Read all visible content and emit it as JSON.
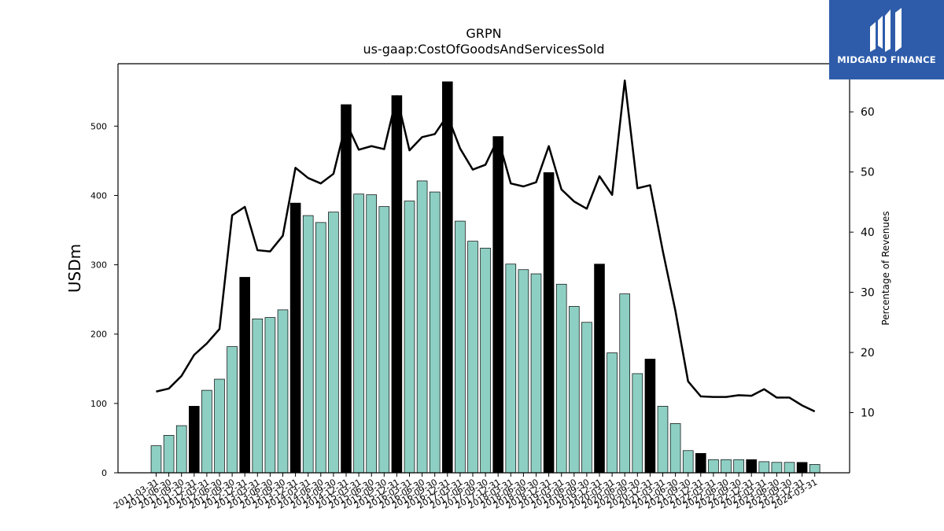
{
  "brand": {
    "name": "MIDGARD FINANCE",
    "color": "#2e5caa",
    "icon": "midgard-logo-icon"
  },
  "chart_data": {
    "type": "bar",
    "title": "GRPN",
    "subtitle": "us-gaap:CostOfGoodsAndServicesSold",
    "ylabel": "USDm",
    "ylabel_right": "Percentage of Revenues",
    "ylim": [
      0,
      590
    ],
    "ylim_right": [
      0,
      68
    ],
    "yticks": [
      0,
      100,
      200,
      300,
      400,
      500
    ],
    "yticks_right": [
      10,
      20,
      30,
      40,
      50,
      60
    ],
    "colors": {
      "quarter_bar": "#8ecfc3",
      "year_end_bar": "#000000",
      "line": "#000000"
    },
    "x": [
      "2011-03-31",
      "2011-06-30",
      "2011-09-30",
      "2011-12-31",
      "2012-03-31",
      "2012-06-30",
      "2012-09-30",
      "2012-12-31",
      "2013-03-31",
      "2013-06-30",
      "2013-09-30",
      "2013-12-31",
      "2014-03-31",
      "2014-06-30",
      "2014-09-30",
      "2014-12-31",
      "2015-03-31",
      "2015-06-30",
      "2015-09-30",
      "2015-12-31",
      "2016-03-31",
      "2016-06-30",
      "2016-09-30",
      "2016-12-31",
      "2017-03-31",
      "2017-06-30",
      "2017-09-30",
      "2017-12-31",
      "2018-03-31",
      "2018-06-30",
      "2018-09-30",
      "2018-12-31",
      "2019-03-31",
      "2019-06-30",
      "2019-09-30",
      "2019-12-31",
      "2020-03-31",
      "2020-06-30",
      "2020-09-30",
      "2020-12-31",
      "2021-03-31",
      "2021-06-30",
      "2021-09-30",
      "2021-12-31",
      "2022-03-31",
      "2022-06-30",
      "2022-09-30",
      "2022-12-31",
      "2023-03-31",
      "2023-06-30",
      "2023-09-30",
      "2023-12-31",
      "2024-03-31"
    ],
    "xtick_labels": [
      "2011-03-31",
      "2011-06-30",
      "2011-09-30",
      "2011-12-31",
      "2012-03-31",
      "2012-06-30",
      "2012-09-30",
      "2012-12-31",
      "2013-03-31",
      "2013-06-30",
      "2013-09-30",
      "2013-12-31",
      "2014-03-31",
      "2014-06-30",
      "2014-09-30",
      "2014-12-31",
      "2015-03-31",
      "2015-06-30",
      "2015-09-30",
      "2015-12-31",
      "2016-03-31",
      "2016-06-30",
      "2016-09-30",
      "2016-12-31",
      "2017-03-31",
      "2017-06-30",
      "2017-09-30",
      "2017-12-31",
      "2018-03-31",
      "2018-06-30",
      "2018-09-30",
      "2018-12-31",
      "2019-03-31",
      "2019-06-30",
      "2019-09-30",
      "2019-12-31",
      "2020-03-31",
      "2020-06-30",
      "2020-09-30",
      "2020-12-31",
      "2021-03-31",
      "2021-06-30",
      "2021-09-30",
      "2021-12-31",
      "2022-03-31",
      "2022-06-30",
      "2022-09-30",
      "2022-12-31",
      "2023-03-31",
      "2023-06-30",
      "2023-09-30",
      "2023-12-31",
      "2024-03-31"
    ],
    "series": [
      {
        "type": "bar",
        "values": [
          39,
          54,
          68,
          96,
          119,
          135,
          182,
          282,
          222,
          224,
          235,
          389,
          371,
          361,
          376,
          531,
          402,
          401,
          384,
          544,
          392,
          421,
          405,
          564,
          363,
          334,
          324,
          485,
          301,
          293,
          287,
          433,
          272,
          240,
          217,
          301,
          173,
          258,
          143,
          164,
          96,
          71,
          32,
          28,
          19,
          19,
          19,
          19,
          16,
          15,
          15,
          15,
          12
        ],
        "year_end": [
          false,
          false,
          false,
          true,
          false,
          false,
          false,
          true,
          false,
          false,
          false,
          true,
          false,
          false,
          false,
          true,
          false,
          false,
          false,
          true,
          false,
          false,
          false,
          true,
          false,
          false,
          false,
          true,
          false,
          false,
          false,
          true,
          false,
          false,
          false,
          true,
          false,
          false,
          false,
          true,
          false,
          false,
          false,
          true,
          false,
          false,
          false,
          true,
          false,
          false,
          false,
          true,
          false
        ]
      },
      {
        "type": "line",
        "axis": "right",
        "values": [
          13.5,
          14.0,
          16.1,
          19.6,
          21.5,
          23.9,
          42.8,
          44.2,
          37.0,
          36.8,
          39.4,
          50.7,
          49.0,
          48.1,
          49.7,
          58.2,
          53.7,
          54.3,
          53.8,
          62.6,
          53.6,
          55.8,
          56.3,
          59.4,
          53.9,
          50.4,
          51.2,
          55.6,
          48.1,
          47.6,
          48.3,
          54.3,
          47.1,
          45.1,
          43.9,
          49.3,
          46.2,
          65.2,
          47.3,
          47.8,
          36.9,
          26.9,
          15.2,
          12.7,
          12.6,
          12.6,
          12.9,
          12.8,
          13.9,
          12.5,
          12.5,
          11.2,
          10.2
        ]
      }
    ]
  }
}
